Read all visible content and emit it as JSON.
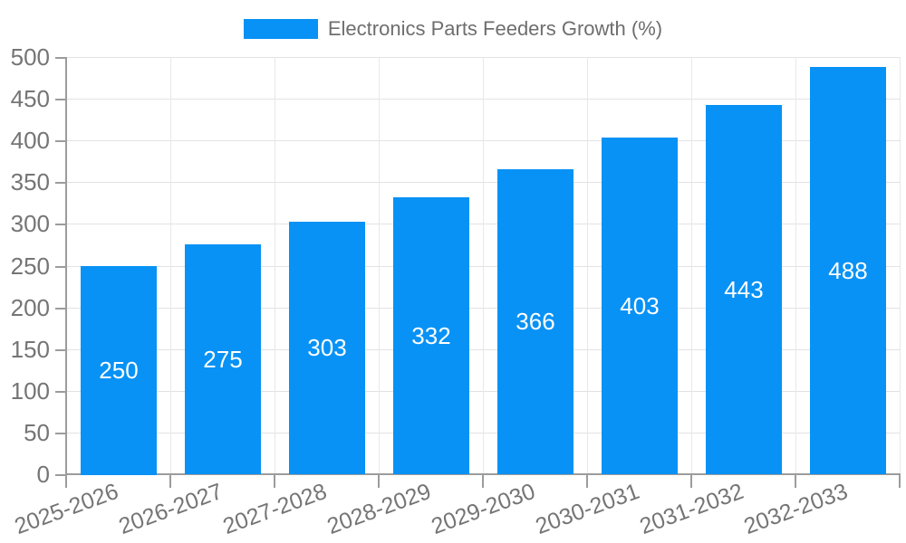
{
  "legend": {
    "label": "Electronics Parts Feeders Growth (%)"
  },
  "chart_data": {
    "type": "bar",
    "title": "Electronics Parts Feeders Growth (%)",
    "categories": [
      "2025-2026",
      "2026-2027",
      "2027-2028",
      "2028-2029",
      "2029-2030",
      "2030-2031",
      "2031-2032",
      "2032-2033"
    ],
    "values": [
      250,
      275,
      303,
      332,
      366,
      403,
      443,
      488
    ],
    "xlabel": "",
    "ylabel": "",
    "ylim": [
      0,
      500
    ],
    "ytick_step": 50,
    "yticks": [
      0,
      50,
      100,
      150,
      200,
      250,
      300,
      350,
      400,
      450,
      500
    ],
    "grid": true,
    "legend_position": "top",
    "value_labels": "inside-center",
    "colors": {
      "bar": "#0892f5",
      "value_label": "#ffffff",
      "legend_text": "#6e6e6e",
      "tick_label": "#757575",
      "axis_line": "#9c9c9c",
      "grid_horizontal": "#e2e2e2",
      "grid_vertical": "#e8e8e8",
      "background": "#ffffff"
    }
  }
}
